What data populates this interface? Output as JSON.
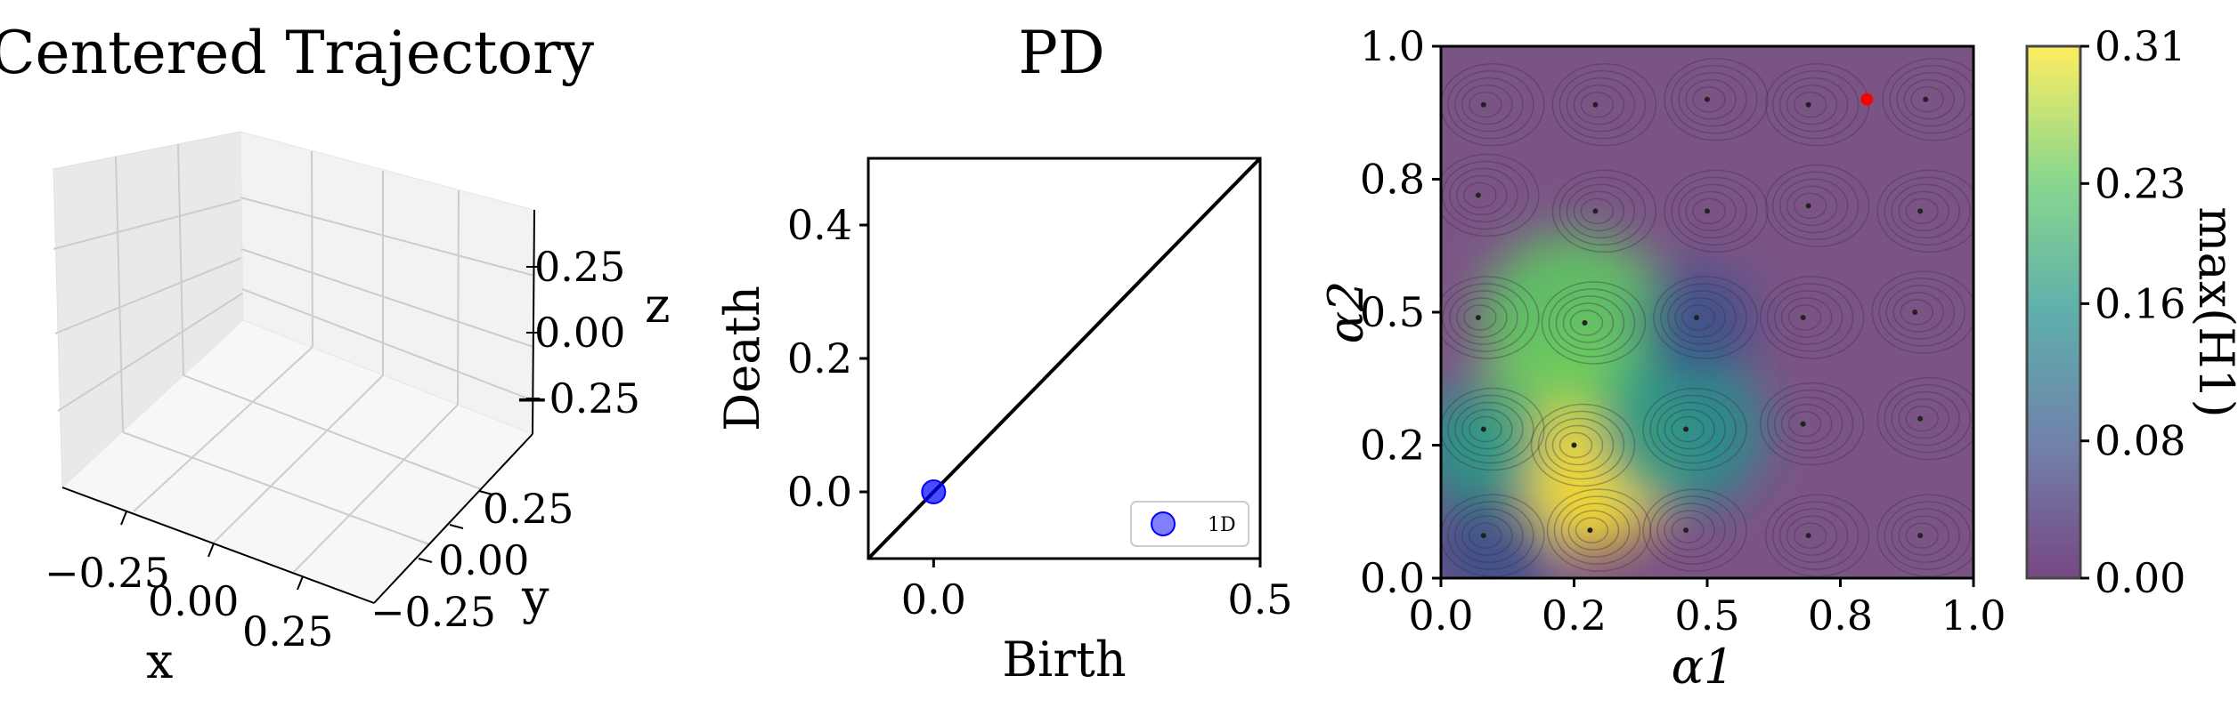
{
  "panels": [
    {
      "title": "Centered Trajectory",
      "chart_data": {
        "type": "scatter",
        "title": "Centered Trajectory",
        "xlabel": "x",
        "ylabel": "y",
        "zlabel": "z",
        "x_ticks": [
          "−0.25",
          "0.00",
          "0.25"
        ],
        "y_ticks": [
          "−0.25",
          "0.00",
          "0.25"
        ],
        "z_ticks": [
          "−0.25",
          "0.00",
          "0.25"
        ],
        "points": []
      }
    },
    {
      "title": "PD",
      "chart_data": {
        "type": "scatter",
        "title": "PD",
        "xlabel": "Birth",
        "ylabel": "Death",
        "xlim": [
          -0.1,
          0.5
        ],
        "ylim": [
          -0.1,
          0.5
        ],
        "x_ticks": [
          {
            "v": 0.0,
            "t": "0.0"
          },
          {
            "v": 0.5,
            "t": "0.5"
          }
        ],
        "y_ticks": [
          {
            "v": 0.0,
            "t": "0.0"
          },
          {
            "v": 0.2,
            "t": "0.2"
          },
          {
            "v": 0.4,
            "t": "0.4"
          }
        ],
        "series": [
          {
            "name": "1D",
            "color": "#0000ff",
            "points": [
              [
                0.0,
                0.0
              ]
            ]
          }
        ],
        "diagonal": true,
        "legend": "bottom-right"
      }
    },
    {
      "title": "",
      "chart_data": {
        "type": "heatmap",
        "xlabel": "α1",
        "ylabel": "α2",
        "xlim": [
          0,
          1
        ],
        "ylim": [
          0,
          1
        ],
        "x_ticks": [
          {
            "v": 0.0,
            "t": "0.0"
          },
          {
            "v": 0.25,
            "t": "0.2"
          },
          {
            "v": 0.5,
            "t": "0.5"
          },
          {
            "v": 0.75,
            "t": "0.8"
          },
          {
            "v": 1.0,
            "t": "1.0"
          }
        ],
        "y_ticks": [
          {
            "v": 0.0,
            "t": "0.0"
          },
          {
            "v": 0.25,
            "t": "0.2"
          },
          {
            "v": 0.5,
            "t": "0.5"
          },
          {
            "v": 0.75,
            "t": "0.8"
          },
          {
            "v": 1.0,
            "t": "1.0"
          }
        ],
        "colorbar": {
          "label": "max(H1)",
          "range": [
            0.0,
            0.31
          ],
          "ticks": [
            {
              "v": 0.0,
              "t": "0.00"
            },
            {
              "v": 0.08,
              "t": "0.08"
            },
            {
              "v": 0.16,
              "t": "0.16"
            },
            {
              "v": 0.23,
              "t": "0.23"
            },
            {
              "v": 0.31,
              "t": "0.31"
            }
          ]
        },
        "colormap": [
          "#440154",
          "#3b528b",
          "#21918c",
          "#5ec962",
          "#fde725"
        ],
        "blobs": [
          {
            "x": 0.25,
            "y": 0.25,
            "value": 0.31
          },
          {
            "x": 0.25,
            "y": 0.48,
            "value": 0.24
          },
          {
            "x": 0.45,
            "y": 0.28,
            "value": 0.19
          },
          {
            "x": 0.07,
            "y": 0.25,
            "value": 0.12
          },
          {
            "x": 0.1,
            "y": 0.05,
            "value": 0.1
          },
          {
            "x": 0.48,
            "y": 0.48,
            "value": 0.08
          }
        ],
        "marker": {
          "x": 0.8,
          "y": 0.9,
          "color": "#ff0000"
        },
        "contour_centers": [
          {
            "x": 0.08,
            "y": 0.89
          },
          {
            "x": 0.29,
            "y": 0.89
          },
          {
            "x": 0.5,
            "y": 0.9
          },
          {
            "x": 0.69,
            "y": 0.89
          },
          {
            "x": 0.91,
            "y": 0.9
          },
          {
            "x": 0.07,
            "y": 0.72
          },
          {
            "x": 0.29,
            "y": 0.69
          },
          {
            "x": 0.5,
            "y": 0.69
          },
          {
            "x": 0.69,
            "y": 0.7
          },
          {
            "x": 0.9,
            "y": 0.69
          },
          {
            "x": 0.07,
            "y": 0.49
          },
          {
            "x": 0.27,
            "y": 0.48
          },
          {
            "x": 0.48,
            "y": 0.49
          },
          {
            "x": 0.68,
            "y": 0.49
          },
          {
            "x": 0.89,
            "y": 0.5
          },
          {
            "x": 0.08,
            "y": 0.28
          },
          {
            "x": 0.25,
            "y": 0.25
          },
          {
            "x": 0.46,
            "y": 0.28
          },
          {
            "x": 0.68,
            "y": 0.29
          },
          {
            "x": 0.9,
            "y": 0.3
          },
          {
            "x": 0.08,
            "y": 0.08
          },
          {
            "x": 0.28,
            "y": 0.09
          },
          {
            "x": 0.46,
            "y": 0.09
          },
          {
            "x": 0.69,
            "y": 0.08
          },
          {
            "x": 0.9,
            "y": 0.08
          }
        ]
      }
    }
  ]
}
